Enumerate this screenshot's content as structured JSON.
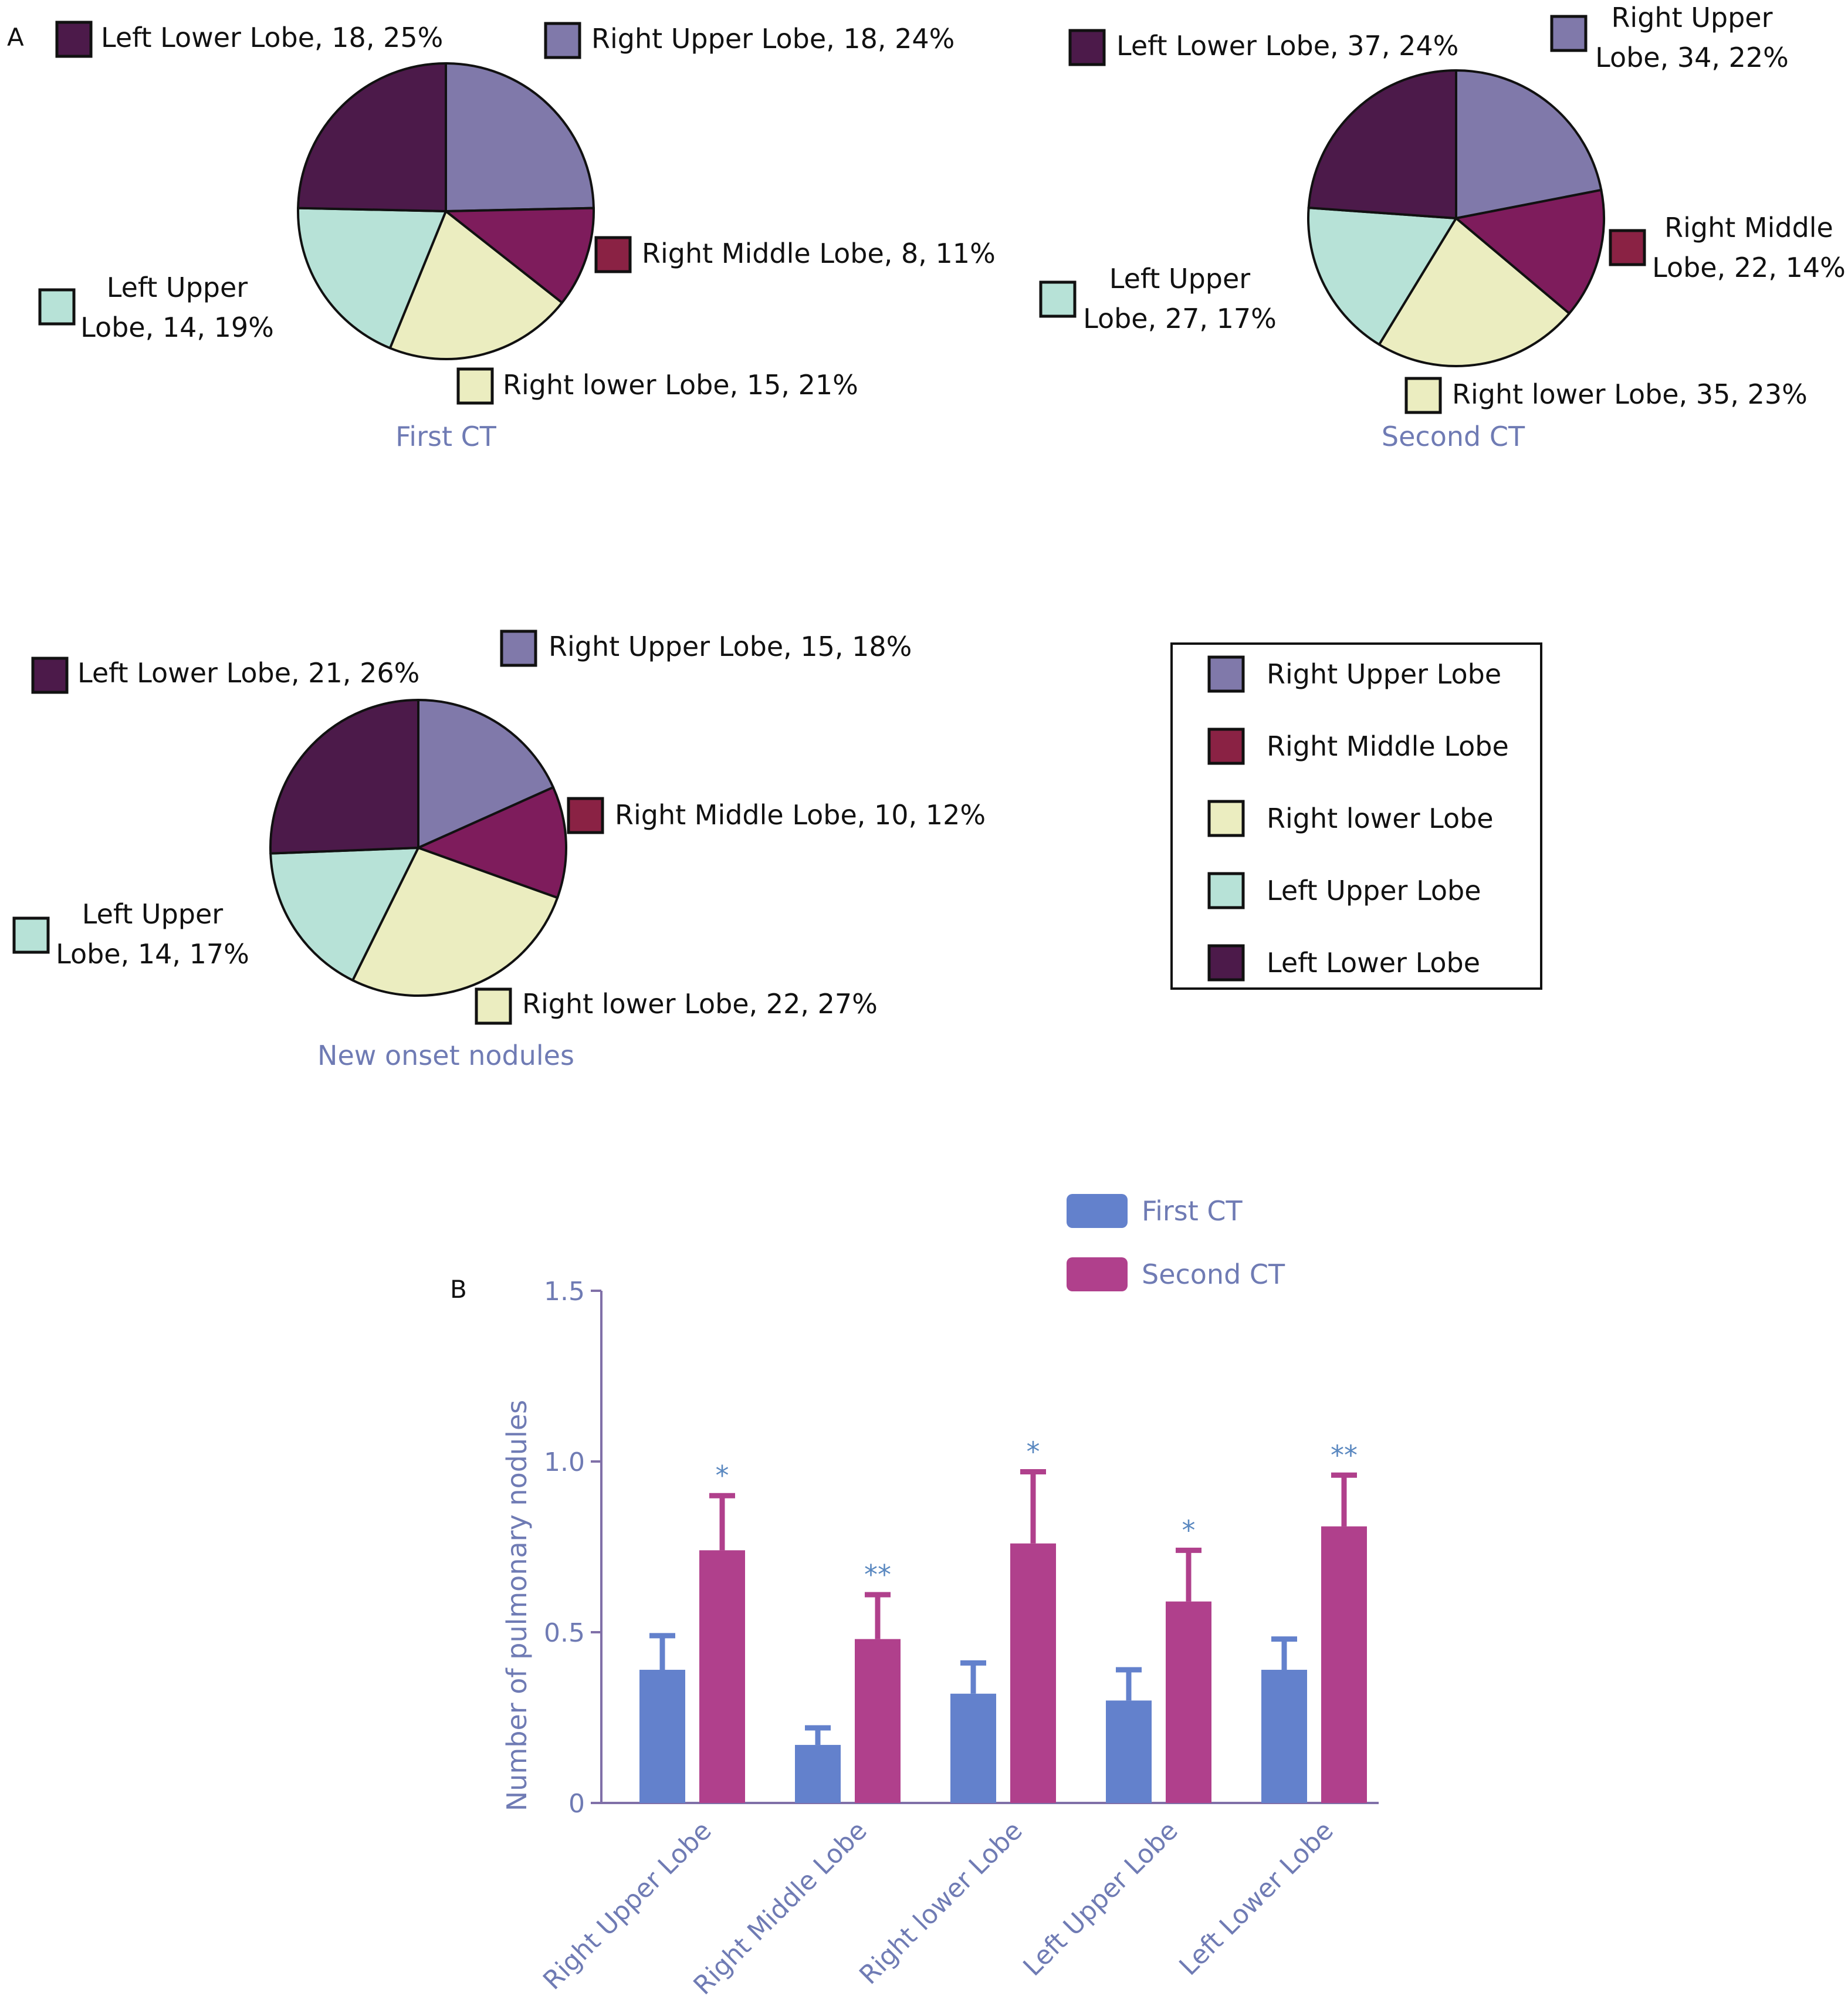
{
  "colors": {
    "right_upper": "#8079AA",
    "right_middle": "#7E1C5C",
    "right_lower": "#EBEDC0",
    "left_upper": "#B7E2D7",
    "left_lower": "#4C1A4A",
    "swatch_right_middle": "#8A2244",
    "bar_first": "#6381CC",
    "bar_second": "#B0408C",
    "chart_text": "#6F7BB4",
    "sig_text": "#5A88C0",
    "axis_line": "#8070A8"
  },
  "panel_labels": {
    "a": "A",
    "b": "B"
  },
  "legend": {
    "items": [
      {
        "label": "Right Upper Lobe",
        "color_key": "right_upper"
      },
      {
        "label": "Right Middle Lobe",
        "color_key": "swatch_right_middle"
      },
      {
        "label": "Right lower Lobe",
        "color_key": "right_lower"
      },
      {
        "label": "Left Upper Lobe",
        "color_key": "left_upper"
      },
      {
        "label": "Left Lower Lobe",
        "color_key": "left_lower"
      }
    ]
  },
  "chart_data": [
    {
      "type": "pie",
      "title": "First CT",
      "slices": [
        {
          "key": "right_upper",
          "lines": [
            "Right Upper Lobe, 18, 24%"
          ],
          "value": 18,
          "percent": 24
        },
        {
          "key": "right_middle",
          "lines": [
            "Right Middle Lobe, 8, 11%"
          ],
          "value": 8,
          "percent": 11
        },
        {
          "key": "right_lower",
          "lines": [
            "Right lower Lobe, 15, 21%"
          ],
          "value": 15,
          "percent": 21
        },
        {
          "key": "left_upper",
          "lines": [
            "Left Upper",
            "Lobe, 14, 19%"
          ],
          "value": 14,
          "percent": 19
        },
        {
          "key": "left_lower",
          "lines": [
            "Left Lower Lobe, 18, 25%"
          ],
          "value": 18,
          "percent": 25
        }
      ]
    },
    {
      "type": "pie",
      "title": "Second CT",
      "slices": [
        {
          "key": "right_upper",
          "lines": [
            "Right Upper",
            "Lobe, 34, 22%"
          ],
          "value": 34,
          "percent": 22
        },
        {
          "key": "right_middle",
          "lines": [
            "Right Middle",
            "Lobe, 22, 14%"
          ],
          "value": 22,
          "percent": 14
        },
        {
          "key": "right_lower",
          "lines": [
            "Right lower Lobe, 35, 23%"
          ],
          "value": 35,
          "percent": 23
        },
        {
          "key": "left_upper",
          "lines": [
            "Left Upper",
            "Lobe, 27, 17%"
          ],
          "value": 27,
          "percent": 17
        },
        {
          "key": "left_lower",
          "lines": [
            "Left Lower Lobe, 37, 24%"
          ],
          "value": 37,
          "percent": 24
        }
      ]
    },
    {
      "type": "pie",
      "title": "New onset nodules",
      "slices": [
        {
          "key": "right_upper",
          "lines": [
            "Right Upper Lobe, 15, 18%"
          ],
          "value": 15,
          "percent": 18
        },
        {
          "key": "right_middle",
          "lines": [
            "Right Middle Lobe, 10, 12%"
          ],
          "value": 10,
          "percent": 12
        },
        {
          "key": "right_lower",
          "lines": [
            "Right lower Lobe, 22, 27%"
          ],
          "value": 22,
          "percent": 27
        },
        {
          "key": "left_upper",
          "lines": [
            "Left Upper",
            "Lobe, 14, 17%"
          ],
          "value": 14,
          "percent": 17
        },
        {
          "key": "left_lower",
          "lines": [
            "Left Lower Lobe, 21, 26%"
          ],
          "value": 21,
          "percent": 26
        }
      ]
    },
    {
      "type": "bar",
      "ylabel": "Number of pulmonary nodules",
      "ylim": [
        0,
        1.5
      ],
      "yticks": [
        {
          "value": 0,
          "label": "0"
        },
        {
          "value": 0.5,
          "label": "0.5"
        },
        {
          "value": 1.0,
          "label": "1.0"
        },
        {
          "value": 1.5,
          "label": "1.5"
        }
      ],
      "categories": [
        "Right Upper Lobe",
        "Right Middle Lobe",
        "Right lower Lobe",
        "Left Upper Lobe",
        "Left Lower Lobe"
      ],
      "series": [
        {
          "name": "First CT",
          "color_key": "bar_first",
          "values": [
            0.39,
            0.17,
            0.32,
            0.3,
            0.39
          ],
          "errors": [
            0.1,
            0.05,
            0.09,
            0.09,
            0.09
          ]
        },
        {
          "name": "Second CT",
          "color_key": "bar_second",
          "values": [
            0.74,
            0.48,
            0.76,
            0.59,
            0.81
          ],
          "errors": [
            0.16,
            0.13,
            0.21,
            0.15,
            0.15
          ]
        }
      ],
      "significance": [
        "*",
        "**",
        "*",
        "*",
        "**"
      ],
      "legend_position": "top-right"
    }
  ]
}
